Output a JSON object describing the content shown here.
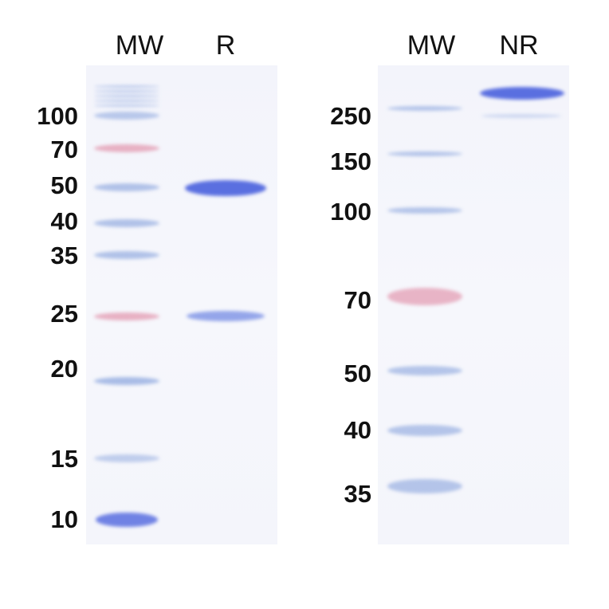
{
  "left_gel": {
    "lanes": [
      "MW",
      "R"
    ],
    "markers": [
      "100",
      "70",
      "50",
      "40",
      "35",
      "25",
      "20",
      "15",
      "10"
    ]
  },
  "right_gel": {
    "lanes": [
      "MW",
      "NR"
    ],
    "markers": [
      "250",
      "150",
      "100",
      "70",
      "50",
      "40",
      "35"
    ]
  },
  "colors": {
    "band_blue": "#5a6fe0",
    "marker_blue": "#a9bce6",
    "marker_pink": "#e6a9bd"
  }
}
